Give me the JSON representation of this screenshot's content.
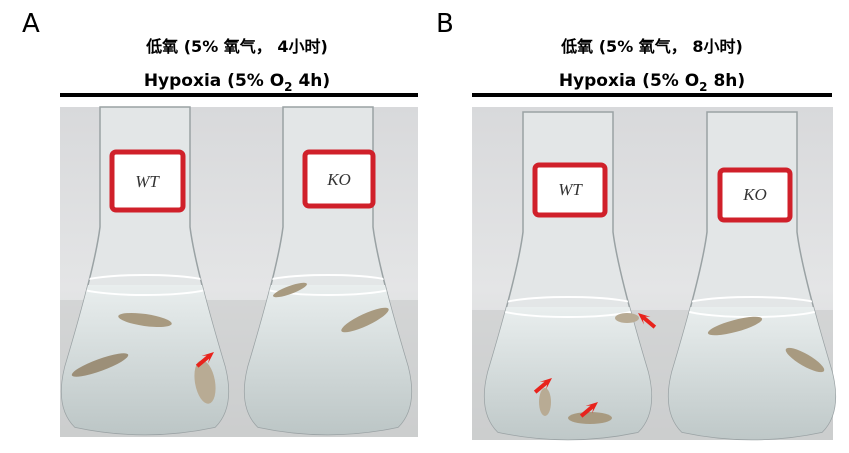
{
  "panels": [
    {
      "letter": "A",
      "title_cn": "低氧 (5% 氧气， 4小时)",
      "title_en": {
        "prefix": "Hypoxia (5% O",
        "subscript": "2",
        "suffix": " 4h)"
      },
      "flask_labels": [
        "WT",
        "KO"
      ]
    },
    {
      "letter": "B",
      "title_cn": "低氧 (5% 氧气， 8小时)",
      "title_en": {
        "prefix": "Hypoxia (5% O",
        "subscript": "2",
        "suffix": " 8h)"
      },
      "flask_labels": [
        "WT",
        "KO"
      ]
    }
  ]
}
